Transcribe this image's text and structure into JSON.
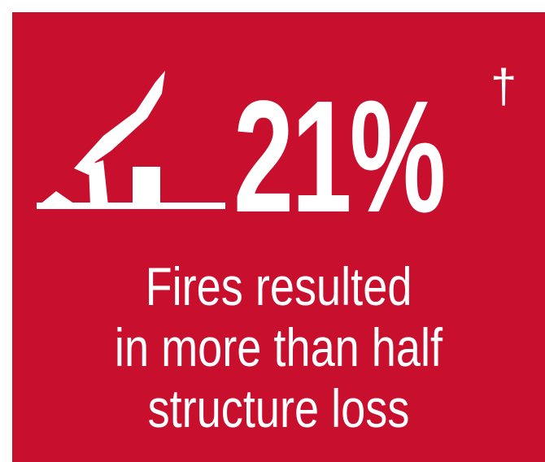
{
  "stat": {
    "value": "21%",
    "footnote_mark": "†"
  },
  "caption": {
    "lines": [
      "Fires resulted",
      "in more than half",
      "structure loss"
    ]
  },
  "icon": {
    "name": "burned-house-icon"
  },
  "colors": {
    "card_background": "#c8102e",
    "foreground": "#ffffff",
    "page_background": "#ffffff"
  }
}
